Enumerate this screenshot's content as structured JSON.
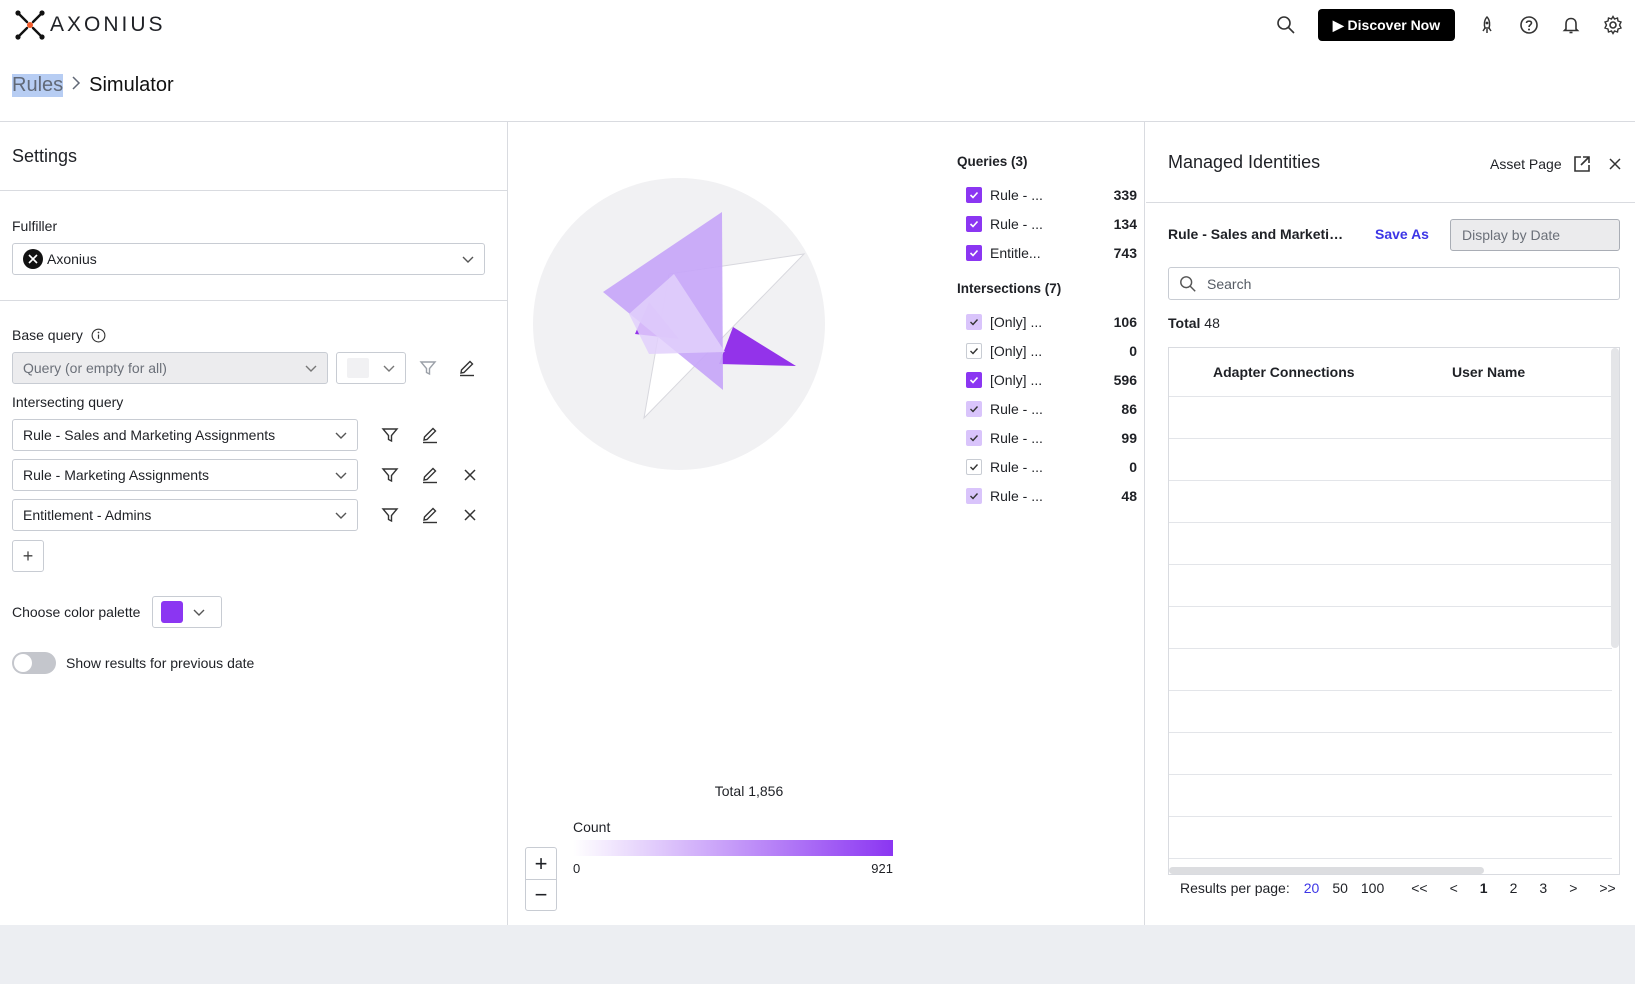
{
  "brand": {
    "name": "AXONIUS"
  },
  "topbar": {
    "discover_label": "▶ Discover Now"
  },
  "breadcrumb": {
    "parent": "Rules",
    "separator": ">",
    "current": "Simulator"
  },
  "settings": {
    "title": "Settings",
    "fulfiller_label": "Fulfiller",
    "fulfiller_value": "Axonius",
    "base_query_label": "Base query",
    "base_query_placeholder": "Query (or empty for all)",
    "intersecting_label": "Intersecting query",
    "intersecting_queries": [
      "Rule - Sales and Marketing Assignments",
      "Rule - Marketing Assignments",
      "Entitlement - Admins"
    ],
    "add_label": "+",
    "palette_label": "Choose color palette",
    "palette_color": "#8b36f2",
    "toggle_label": "Show results for previous date"
  },
  "chart": {
    "queries_header": "Queries (3)",
    "queries": [
      {
        "name": "Rule - ...",
        "value": "339",
        "state": "on"
      },
      {
        "name": "Rule - ...",
        "value": "134",
        "state": "on"
      },
      {
        "name": "Entitle...",
        "value": "743",
        "state": "on"
      }
    ],
    "intersections_header": "Intersections (7)",
    "intersections": [
      {
        "name": "[Only] ...",
        "value": "106",
        "state": "light"
      },
      {
        "name": "[Only] ...",
        "value": "0",
        "state": "off"
      },
      {
        "name": "[Only] ...",
        "value": "596",
        "state": "on"
      },
      {
        "name": "Rule - ...",
        "value": "86",
        "state": "light"
      },
      {
        "name": "Rule - ...",
        "value": "99",
        "state": "light"
      },
      {
        "name": "Rule - ...",
        "value": "0",
        "state": "off"
      },
      {
        "name": "Rule - ...",
        "value": "48",
        "state": "light"
      }
    ],
    "total": "Total 1,856",
    "count_label": "Count",
    "scale_min": "0",
    "scale_max": "921",
    "zoom_in": "+",
    "zoom_out": "−"
  },
  "managed": {
    "title": "Managed Identities",
    "asset_page": "Asset Page",
    "query_name": "Rule - Sales and Marketin...",
    "save_as": "Save As",
    "display_by_date": "Display by Date",
    "search_placeholder": "Search",
    "total_label": "Total",
    "total_value": "48",
    "columns": [
      "Adapter Connections",
      "User Name"
    ],
    "pager": {
      "label": "Results per page:",
      "sizes": [
        "20",
        "50",
        "100"
      ],
      "first": "<<",
      "prev": "<",
      "pages": [
        "1",
        "2",
        "3"
      ],
      "next": ">",
      "last": ">>"
    }
  },
  "colors": {
    "accent": "#8b36f2",
    "link": "#3c35e6"
  }
}
